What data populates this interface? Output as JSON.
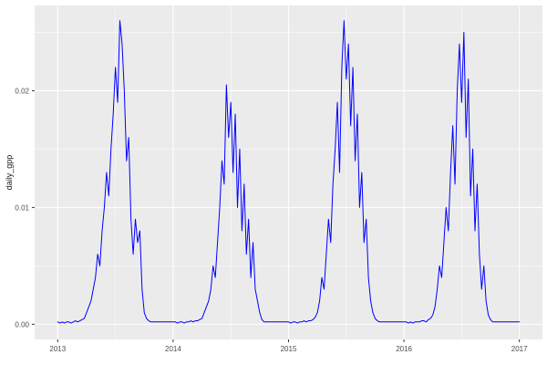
{
  "chart_data": {
    "type": "line",
    "title": "",
    "xlabel": "",
    "ylabel": "daily_gpp",
    "legend": "none",
    "grid": "on",
    "panel_bg": "#EBEBEB",
    "grid_color": "#FFFFFF",
    "series_color": "#0000FF",
    "tick_text_color": "#4D4D4D",
    "xlim": [
      2012.8,
      2017.2
    ],
    "ylim": [
      -0.0013,
      0.0273
    ],
    "xticks": [
      2013,
      2014,
      2015,
      2016,
      2017
    ],
    "xtick_labels": [
      "2013",
      "2014",
      "2015",
      "2016",
      "2017"
    ],
    "yticks": [
      0.0,
      0.01,
      0.02
    ],
    "ytick_labels": [
      "0.00",
      "0.01",
      "0.02"
    ],
    "x_minor": [
      2013.5,
      2014.5,
      2015.5,
      2016.5
    ],
    "y_minor": [
      0.005,
      0.015,
      0.025
    ],
    "x_start": 2013.0,
    "x_step": 0.019230769,
    "series_name": "daily_gpp",
    "values": [
      0.0002,
      0.0001,
      0.0002,
      0.0001,
      0.0002,
      0.0002,
      0.0001,
      0.0002,
      0.0003,
      0.0002,
      0.0003,
      0.0004,
      0.0005,
      0.001,
      0.0015,
      0.002,
      0.003,
      0.004,
      0.006,
      0.005,
      0.008,
      0.01,
      0.013,
      0.011,
      0.015,
      0.018,
      0.022,
      0.019,
      0.026,
      0.024,
      0.02,
      0.014,
      0.016,
      0.009,
      0.006,
      0.009,
      0.007,
      0.008,
      0.003,
      0.001,
      0.0005,
      0.0003,
      0.0002,
      0.0002,
      0.0002,
      0.0002,
      0.0002,
      0.0002,
      0.0002,
      0.0002,
      0.0002,
      0.0002,
      0.0002,
      0.0002,
      0.0001,
      0.0002,
      0.0002,
      0.0001,
      0.0002,
      0.0002,
      0.0003,
      0.0002,
      0.0003,
      0.0003,
      0.0004,
      0.0005,
      0.001,
      0.0015,
      0.002,
      0.003,
      0.005,
      0.004,
      0.007,
      0.01,
      0.014,
      0.012,
      0.0205,
      0.016,
      0.019,
      0.013,
      0.018,
      0.01,
      0.015,
      0.008,
      0.012,
      0.006,
      0.009,
      0.004,
      0.007,
      0.003,
      0.002,
      0.001,
      0.0004,
      0.0002,
      0.0002,
      0.0002,
      0.0002,
      0.0002,
      0.0002,
      0.0002,
      0.0002,
      0.0002,
      0.0002,
      0.0002,
      0.0002,
      0.0001,
      0.0002,
      0.0002,
      0.0001,
      0.0002,
      0.0002,
      0.0003,
      0.0002,
      0.0003,
      0.0003,
      0.0004,
      0.0006,
      0.001,
      0.002,
      0.004,
      0.003,
      0.006,
      0.009,
      0.007,
      0.012,
      0.015,
      0.019,
      0.013,
      0.022,
      0.026,
      0.021,
      0.024,
      0.017,
      0.022,
      0.014,
      0.018,
      0.01,
      0.013,
      0.007,
      0.009,
      0.004,
      0.002,
      0.001,
      0.0005,
      0.0003,
      0.0002,
      0.0002,
      0.0002,
      0.0002,
      0.0002,
      0.0002,
      0.0002,
      0.0002,
      0.0002,
      0.0002,
      0.0002,
      0.0002,
      0.0002,
      0.0001,
      0.0002,
      0.0001,
      0.0002,
      0.0002,
      0.0002,
      0.0003,
      0.0003,
      0.0002,
      0.0004,
      0.0005,
      0.0008,
      0.0015,
      0.003,
      0.005,
      0.004,
      0.007,
      0.01,
      0.008,
      0.013,
      0.017,
      0.012,
      0.02,
      0.024,
      0.019,
      0.025,
      0.016,
      0.021,
      0.011,
      0.015,
      0.008,
      0.012,
      0.006,
      0.003,
      0.005,
      0.002,
      0.0008,
      0.0004,
      0.0002,
      0.0002,
      0.0002,
      0.0002,
      0.0002,
      0.0002,
      0.0002,
      0.0002,
      0.0002,
      0.0002,
      0.0002,
      0.0002,
      0.0002
    ]
  }
}
